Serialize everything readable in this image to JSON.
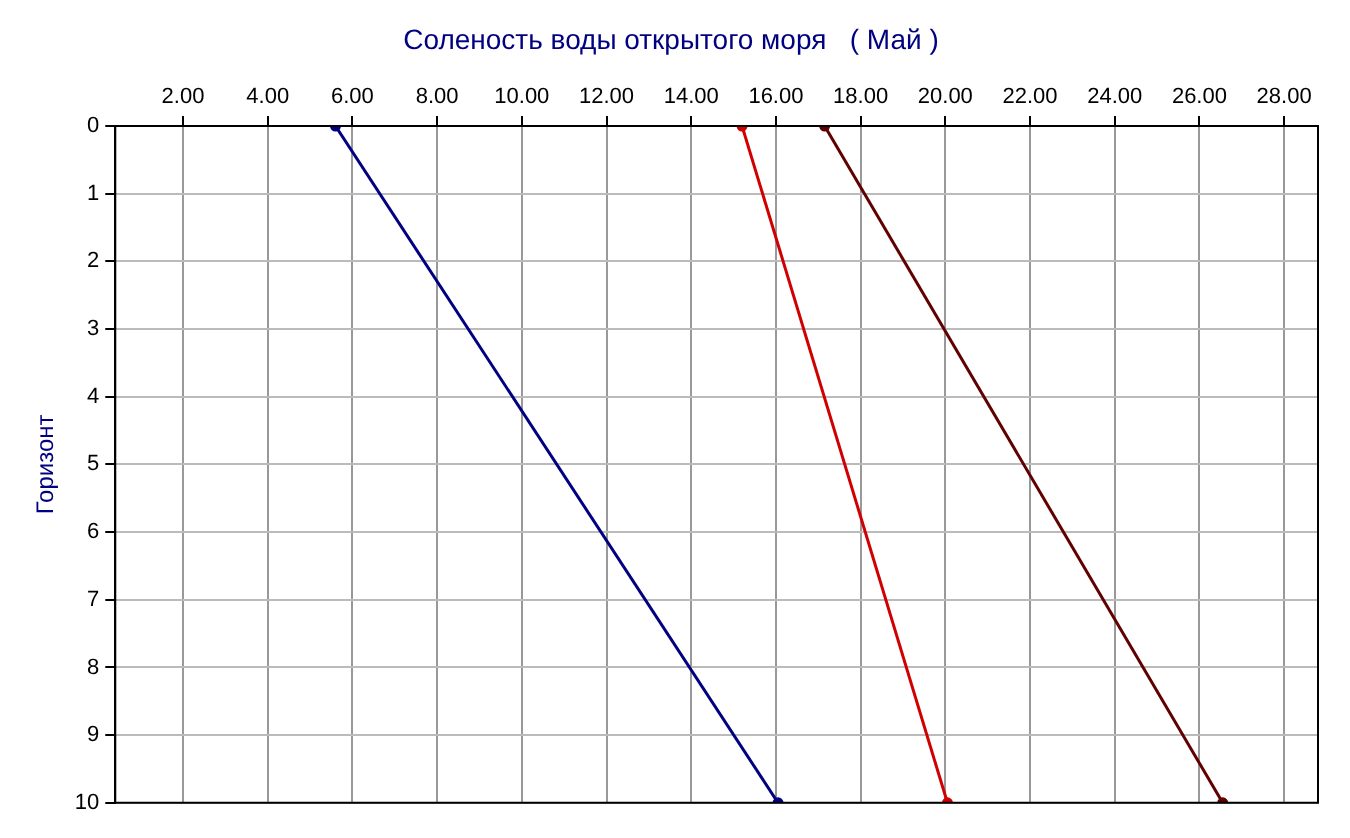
{
  "chart_data": {
    "type": "line",
    "title": "Соленость воды открытого моря   ( Май )",
    "ylabel": "Горизонт",
    "series": [
      {
        "color": "#000080",
        "x": [
          5.6,
          16.05
        ],
        "values": [
          0,
          10
        ]
      },
      {
        "color": "#d00000",
        "x": [
          15.2,
          20.05
        ],
        "values": [
          0,
          10
        ]
      },
      {
        "color": "#600000",
        "x": [
          17.15,
          26.55
        ],
        "values": [
          0,
          10
        ]
      }
    ],
    "xlim": [
      0.4,
      28.8
    ],
    "xticks": [
      {
        "value": 2,
        "label": "2.00"
      },
      {
        "value": 4,
        "label": "4.00"
      },
      {
        "value": 6,
        "label": "6.00"
      },
      {
        "value": 8,
        "label": "8.00"
      },
      {
        "value": 10,
        "label": "10.00"
      },
      {
        "value": 12,
        "label": "12.00"
      },
      {
        "value": 14,
        "label": "14.00"
      },
      {
        "value": 16,
        "label": "16.00"
      },
      {
        "value": 18,
        "label": "18.00"
      },
      {
        "value": 20,
        "label": "20.00"
      },
      {
        "value": 22,
        "label": "22.00"
      },
      {
        "value": 24,
        "label": "24.00"
      },
      {
        "value": 26,
        "label": "26.00"
      },
      {
        "value": 28,
        "label": "28.00"
      }
    ],
    "ylim": [
      10,
      0
    ],
    "yticks": [
      0,
      1,
      2,
      3,
      4,
      5,
      6,
      7,
      8,
      9,
      10
    ],
    "grid": true,
    "legend": false,
    "marker": "circle",
    "line_style": "solid"
  }
}
